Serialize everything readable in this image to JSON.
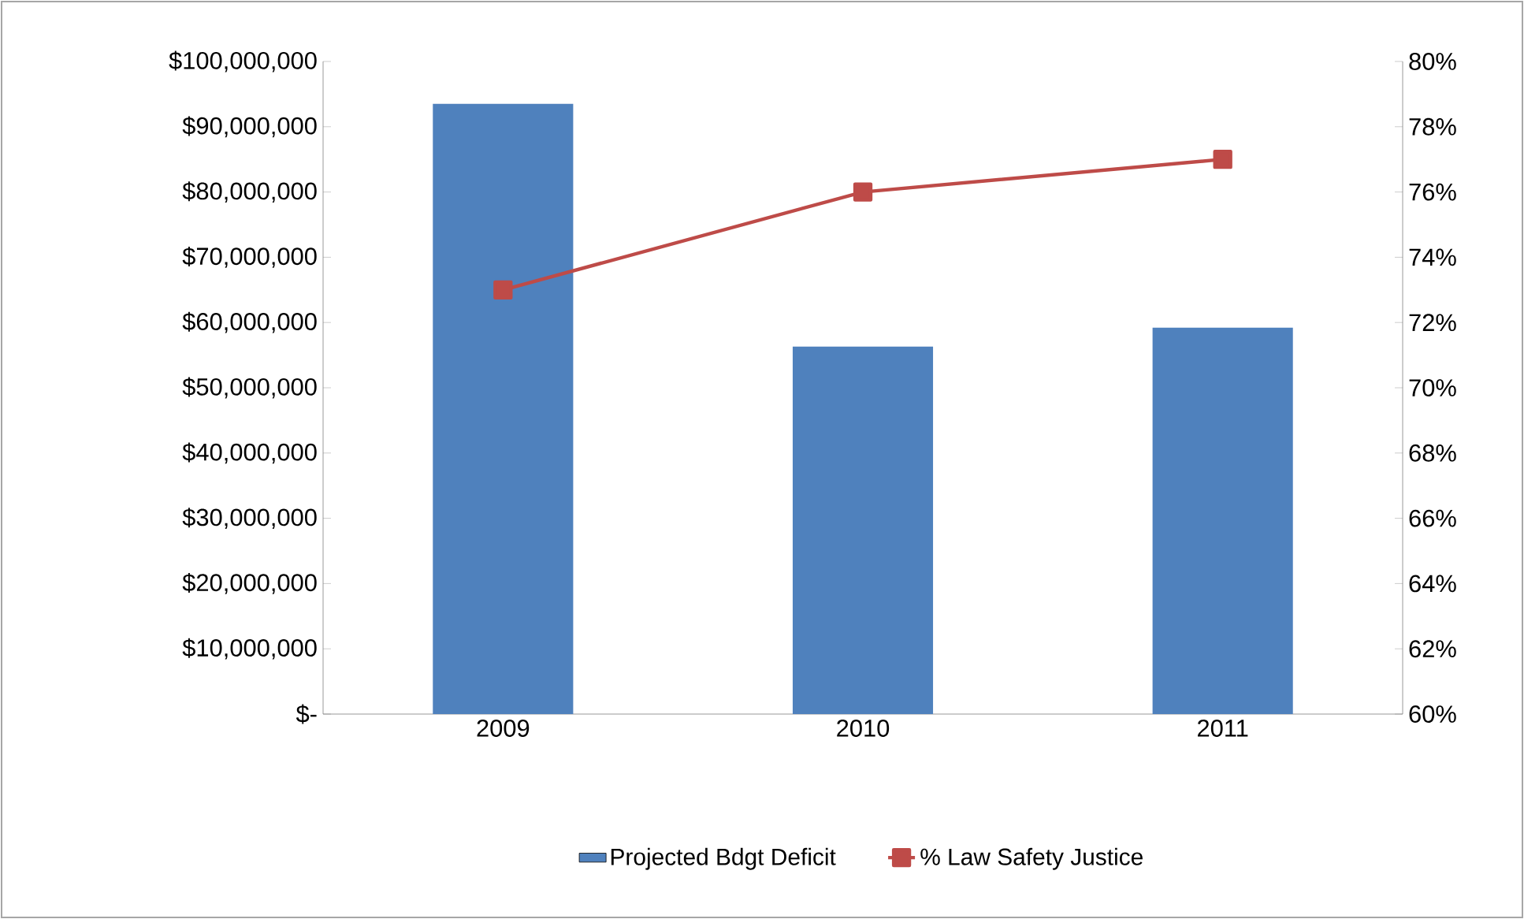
{
  "chart_data": {
    "type": "bar",
    "categories": [
      "2009",
      "2010",
      "2011"
    ],
    "series": [
      {
        "name": "Projected Bdgt Deficit",
        "color": "#4f81bd",
        "values": [
          93500000,
          56300000,
          59200000
        ]
      },
      {
        "name": "% Law Safety Justice",
        "type": "line",
        "axis": "y2",
        "color": "#be4b48",
        "marker": "square",
        "values": [
          73,
          76,
          77
        ]
      }
    ],
    "ylim": [
      0,
      100000000
    ],
    "yticks": [
      {
        "value": 0,
        "label": "$-"
      },
      {
        "value": 10000000,
        "label": "$10,000,000"
      },
      {
        "value": 20000000,
        "label": "$20,000,000"
      },
      {
        "value": 30000000,
        "label": "$30,000,000"
      },
      {
        "value": 40000000,
        "label": "$40,000,000"
      },
      {
        "value": 50000000,
        "label": "$50,000,000"
      },
      {
        "value": 60000000,
        "label": "$60,000,000"
      },
      {
        "value": 70000000,
        "label": "$70,000,000"
      },
      {
        "value": 80000000,
        "label": "$80,000,000"
      },
      {
        "value": 90000000,
        "label": "$90,000,000"
      },
      {
        "value": 100000000,
        "label": "$100,000,000"
      }
    ],
    "y2lim": [
      60,
      80
    ],
    "y2ticks": [
      {
        "value": 60,
        "label": "60%"
      },
      {
        "value": 62,
        "label": "62%"
      },
      {
        "value": 64,
        "label": "64%"
      },
      {
        "value": 66,
        "label": "66%"
      },
      {
        "value": 68,
        "label": "68%"
      },
      {
        "value": 70,
        "label": "70%"
      },
      {
        "value": 72,
        "label": "72%"
      },
      {
        "value": 74,
        "label": "74%"
      },
      {
        "value": 76,
        "label": "76%"
      },
      {
        "value": 78,
        "label": "78%"
      },
      {
        "value": 80,
        "label": "80%"
      }
    ],
    "legend": "bottom",
    "grid": false
  }
}
